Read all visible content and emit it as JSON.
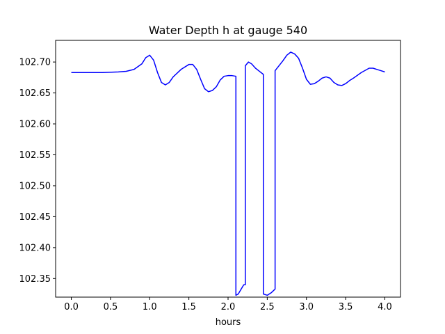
{
  "chart_data": {
    "type": "line",
    "title": "Water Depth h at gauge 540",
    "xlabel": "hours",
    "ylabel": "",
    "xlim": [
      -0.2,
      4.2
    ],
    "ylim": [
      102.32,
      102.735
    ],
    "xticks": [
      0.0,
      0.5,
      1.0,
      1.5,
      2.0,
      2.5,
      3.0,
      3.5,
      4.0
    ],
    "xtick_labels": [
      "0.0",
      "0.5",
      "1.0",
      "1.5",
      "2.0",
      "2.5",
      "3.0",
      "3.5",
      "4.0"
    ],
    "yticks": [
      102.35,
      102.4,
      102.45,
      102.5,
      102.55,
      102.6,
      102.65,
      102.7
    ],
    "ytick_labels": [
      "102.35",
      "102.40",
      "102.45",
      "102.50",
      "102.55",
      "102.60",
      "102.65",
      "102.70"
    ],
    "grid": false,
    "series": [
      {
        "color": "#0000ff",
        "x": [
          0.0,
          0.2,
          0.4,
          0.6,
          0.7,
          0.8,
          0.9,
          0.95,
          1.0,
          1.05,
          1.1,
          1.15,
          1.2,
          1.25,
          1.3,
          1.4,
          1.5,
          1.55,
          1.6,
          1.65,
          1.7,
          1.75,
          1.8,
          1.85,
          1.9,
          1.95,
          2.0,
          2.05,
          2.1,
          2.1,
          2.13,
          2.2,
          2.22,
          2.22,
          2.26,
          2.3,
          2.35,
          2.4,
          2.45,
          2.45,
          2.5,
          2.55,
          2.6,
          2.6,
          2.65,
          2.7,
          2.75,
          2.8,
          2.85,
          2.9,
          2.95,
          3.0,
          3.05,
          3.1,
          3.15,
          3.2,
          3.25,
          3.3,
          3.35,
          3.4,
          3.45,
          3.5,
          3.55,
          3.6,
          3.7,
          3.8,
          3.85,
          3.9,
          3.95,
          4.0
        ],
        "y": [
          102.683,
          102.683,
          102.683,
          102.684,
          102.685,
          102.688,
          102.697,
          102.707,
          102.711,
          102.703,
          102.683,
          102.667,
          102.663,
          102.667,
          102.676,
          102.688,
          102.696,
          102.696,
          102.688,
          102.672,
          102.657,
          102.652,
          102.654,
          102.66,
          102.671,
          102.677,
          102.678,
          102.678,
          102.677,
          102.323,
          102.325,
          102.34,
          102.34,
          102.694,
          102.7,
          102.697,
          102.69,
          102.685,
          102.68,
          102.325,
          102.323,
          102.327,
          102.333,
          102.686,
          102.694,
          102.702,
          102.711,
          102.716,
          102.713,
          102.706,
          102.69,
          102.672,
          102.664,
          102.665,
          102.669,
          102.674,
          102.676,
          102.674,
          102.667,
          102.663,
          102.662,
          102.665,
          102.67,
          102.674,
          102.683,
          102.69,
          102.69,
          102.688,
          102.686,
          102.684
        ]
      }
    ]
  }
}
